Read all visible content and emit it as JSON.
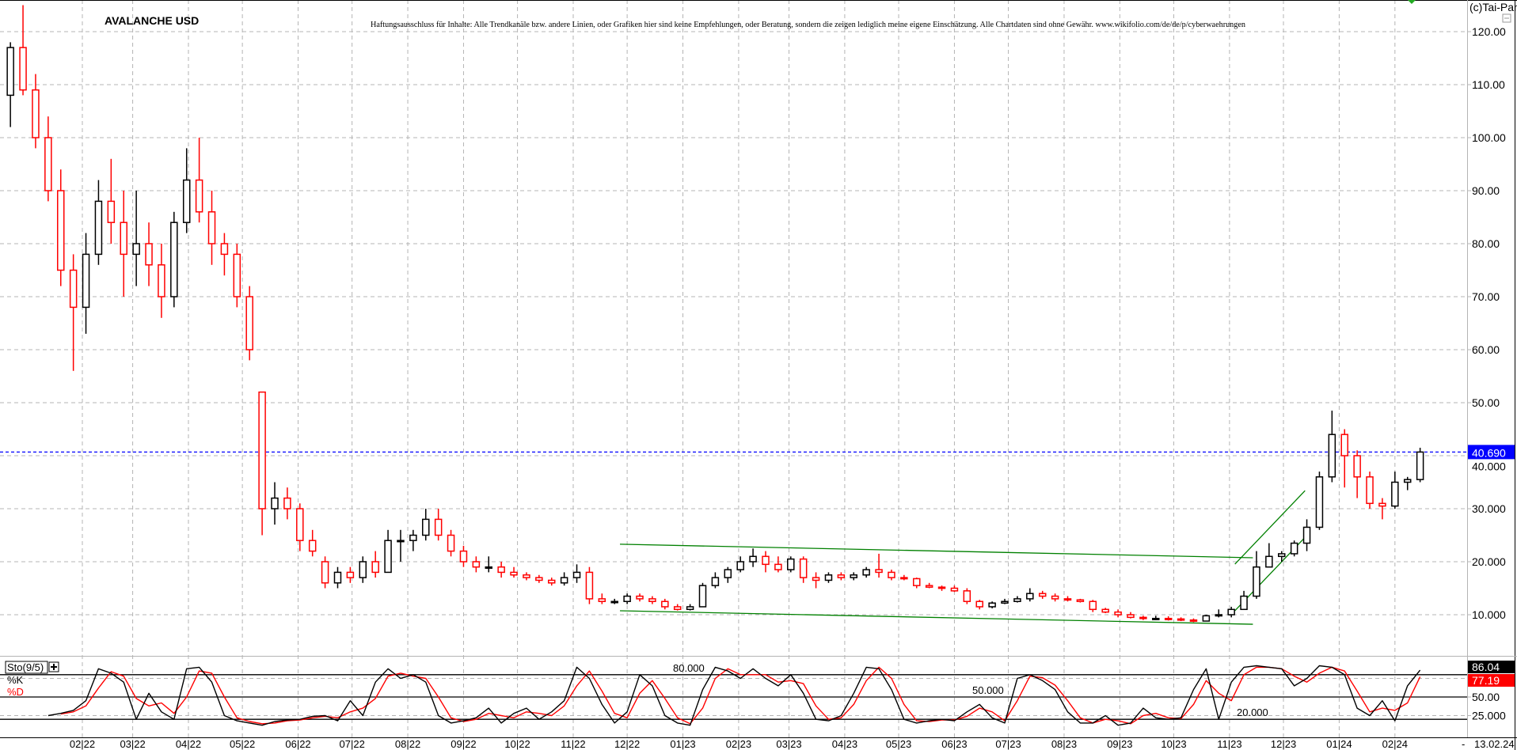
{
  "chart_data": {
    "type": "candlestick",
    "title": "AVALANCHE USD",
    "disclaimer": "Haftungsausschluss für Inhalte: Alle Trendkanäle bzw. andere Linien, oder Grafiken hier sind keine Empfehlungen, oder Beratung, sondern die zeigen lediglich meine eigene Einschätzung. Alle Chartdaten sind ohne Gewähr.  www.wikifolio.com/de/de/p/cyberwaehrungen",
    "copyright": "(c)Tai-Pan",
    "ylim": [
      5,
      125
    ],
    "grid": true,
    "colors": {
      "up": "#000000",
      "down": "#ff0000",
      "trendline": "#008000",
      "last_price": "#0000ff",
      "grid": "#b4b4b4"
    },
    "y_tick_labels": [
      {
        "value": 120,
        "label": "120.00"
      },
      {
        "value": 110,
        "label": "110.00"
      },
      {
        "value": 100,
        "label": "100.00"
      },
      {
        "value": 90,
        "label": "90.00"
      },
      {
        "value": 80,
        "label": "80.00"
      },
      {
        "value": 70,
        "label": "70.00"
      },
      {
        "value": 60,
        "label": "60.00"
      },
      {
        "value": 50,
        "label": "50.00"
      },
      {
        "value": 40,
        "label": "40.000"
      },
      {
        "value": 30,
        "label": "30.000"
      },
      {
        "value": 20,
        "label": "20.000"
      },
      {
        "value": 10,
        "label": "10.000"
      }
    ],
    "last_price": {
      "value": 40.69,
      "label": "40.690"
    },
    "x_tick_labels": [
      {
        "date": "2022-02-01",
        "label": "02|22"
      },
      {
        "date": "2022-03-01",
        "label": "03|22"
      },
      {
        "date": "2022-04-01",
        "label": "04|22"
      },
      {
        "date": "2022-05-01",
        "label": "05|22"
      },
      {
        "date": "2022-06-01",
        "label": "06|22"
      },
      {
        "date": "2022-07-01",
        "label": "07|22"
      },
      {
        "date": "2022-08-01",
        "label": "08|22"
      },
      {
        "date": "2022-09-01",
        "label": "09|22"
      },
      {
        "date": "2022-10-01",
        "label": "10|22"
      },
      {
        "date": "2022-11-01",
        "label": "11|22"
      },
      {
        "date": "2022-12-01",
        "label": "12|22"
      },
      {
        "date": "2023-01-01",
        "label": "01|23"
      },
      {
        "date": "2023-02-01",
        "label": "02|23"
      },
      {
        "date": "2023-03-01",
        "label": "03|23"
      },
      {
        "date": "2023-04-01",
        "label": "04|23"
      },
      {
        "date": "2023-05-01",
        "label": "05|23"
      },
      {
        "date": "2023-06-01",
        "label": "06|23"
      },
      {
        "date": "2023-07-01",
        "label": "07|23"
      },
      {
        "date": "2023-08-01",
        "label": "08|23"
      },
      {
        "date": "2023-09-01",
        "label": "09|23"
      },
      {
        "date": "2023-10-01",
        "label": "10|23"
      },
      {
        "date": "2023-11-01",
        "label": "11|23"
      },
      {
        "date": "2023-12-01",
        "label": "12|23"
      },
      {
        "date": "2024-01-01",
        "label": "01|24"
      },
      {
        "date": "2024-02-01",
        "label": "02|24"
      }
    ],
    "current_date_label": "13.02.24",
    "current_date_prefix": "-",
    "candles_columns": [
      "date",
      "open",
      "high",
      "low",
      "close"
    ],
    "candles": [
      [
        "2021-12-20",
        108,
        118,
        102,
        117
      ],
      [
        "2021-12-27",
        117,
        125,
        108,
        109
      ],
      [
        "2022-01-03",
        109,
        112,
        98,
        100
      ],
      [
        "2022-01-10",
        100,
        104,
        88,
        90
      ],
      [
        "2022-01-17",
        90,
        94,
        72,
        75
      ],
      [
        "2022-01-24",
        75,
        78,
        56,
        68
      ],
      [
        "2022-01-31",
        68,
        82,
        63,
        78
      ],
      [
        "2022-02-07",
        78,
        92,
        76,
        88
      ],
      [
        "2022-02-14",
        88,
        96,
        80,
        84
      ],
      [
        "2022-02-21",
        84,
        90,
        70,
        78
      ],
      [
        "2022-02-28",
        78,
        90,
        72,
        80
      ],
      [
        "2022-03-07",
        80,
        84,
        72,
        76
      ],
      [
        "2022-03-14",
        76,
        80,
        66,
        70
      ],
      [
        "2022-03-21",
        70,
        86,
        68,
        84
      ],
      [
        "2022-03-28",
        84,
        98,
        82,
        92
      ],
      [
        "2022-04-04",
        92,
        100,
        84,
        86
      ],
      [
        "2022-04-11",
        86,
        90,
        76,
        80
      ],
      [
        "2022-04-18",
        80,
        82,
        74,
        78
      ],
      [
        "2022-04-25",
        78,
        80,
        68,
        70
      ],
      [
        "2022-05-02",
        70,
        72,
        58,
        60
      ],
      [
        "2022-05-09",
        52,
        52,
        25,
        30
      ],
      [
        "2022-05-16",
        30,
        35,
        27,
        32
      ],
      [
        "2022-05-23",
        32,
        34,
        28,
        30
      ],
      [
        "2022-05-30",
        30,
        31,
        22,
        24
      ],
      [
        "2022-06-06",
        24,
        26,
        21,
        22
      ],
      [
        "2022-06-13",
        20,
        21,
        15,
        16
      ],
      [
        "2022-06-20",
        16,
        19,
        15,
        18
      ],
      [
        "2022-06-27",
        18,
        19,
        16,
        17
      ],
      [
        "2022-07-04",
        17,
        21,
        16,
        20
      ],
      [
        "2022-07-11",
        20,
        22,
        17,
        18
      ],
      [
        "2022-07-18",
        18,
        26,
        18,
        24
      ],
      [
        "2022-07-25",
        24,
        26,
        20,
        24
      ],
      [
        "2022-08-01",
        24,
        26,
        22,
        25
      ],
      [
        "2022-08-08",
        25,
        30,
        24,
        28
      ],
      [
        "2022-08-15",
        28,
        30,
        24,
        25
      ],
      [
        "2022-08-22",
        25,
        26,
        21,
        22
      ],
      [
        "2022-08-29",
        22,
        23,
        19,
        20
      ],
      [
        "2022-09-05",
        20,
        21,
        18,
        19
      ],
      [
        "2022-09-12",
        19,
        21,
        18,
        19
      ],
      [
        "2022-09-19",
        19,
        20,
        17,
        18
      ],
      [
        "2022-09-26",
        18,
        19,
        17,
        17.5
      ],
      [
        "2022-10-03",
        17.5,
        18,
        16.5,
        17
      ],
      [
        "2022-10-10",
        17,
        17.5,
        16,
        16.5
      ],
      [
        "2022-10-17",
        16.5,
        17,
        15.5,
        16
      ],
      [
        "2022-10-24",
        16,
        18,
        15.5,
        17
      ],
      [
        "2022-10-31",
        17,
        19.5,
        16,
        18
      ],
      [
        "2022-11-07",
        18,
        19,
        12,
        13
      ],
      [
        "2022-11-14",
        13,
        14,
        12,
        12.5
      ],
      [
        "2022-11-21",
        12.5,
        13,
        12,
        12.5
      ],
      [
        "2022-11-28",
        12.5,
        14,
        12,
        13.5
      ],
      [
        "2022-12-05",
        13.5,
        14,
        12.5,
        13
      ],
      [
        "2022-12-12",
        13,
        13.5,
        12,
        12.5
      ],
      [
        "2022-12-19",
        12.5,
        13,
        11,
        11.5
      ],
      [
        "2022-12-26",
        11.5,
        12,
        10.8,
        11
      ],
      [
        "2023-01-02",
        11,
        12,
        10.8,
        11.5
      ],
      [
        "2023-01-09",
        11.5,
        16,
        11.5,
        15.5
      ],
      [
        "2023-01-16",
        15.5,
        18,
        15,
        17
      ],
      [
        "2023-01-23",
        17,
        19,
        16,
        18.5
      ],
      [
        "2023-01-30",
        18.5,
        21,
        18,
        20
      ],
      [
        "2023-02-06",
        20,
        22.5,
        19,
        21
      ],
      [
        "2023-02-13",
        21,
        22,
        18,
        19.5
      ],
      [
        "2023-02-20",
        19.5,
        21,
        18,
        18.5
      ],
      [
        "2023-02-27",
        18.5,
        21,
        18,
        20.5
      ],
      [
        "2023-03-06",
        20.5,
        21,
        16,
        17
      ],
      [
        "2023-03-13",
        17,
        18,
        15,
        16.5
      ],
      [
        "2023-03-20",
        16.5,
        18,
        16,
        17.5
      ],
      [
        "2023-03-27",
        17.5,
        18,
        16.5,
        17
      ],
      [
        "2023-04-03",
        17,
        18,
        16.5,
        17.5
      ],
      [
        "2023-04-10",
        17.5,
        19,
        17,
        18.5
      ],
      [
        "2023-04-17",
        18.5,
        21.5,
        17,
        18
      ],
      [
        "2023-04-24",
        18,
        18.5,
        16.5,
        17
      ],
      [
        "2023-05-01",
        17,
        17.5,
        16.5,
        16.8
      ],
      [
        "2023-05-08",
        16.8,
        17,
        15,
        15.5
      ],
      [
        "2023-05-15",
        15.5,
        16,
        15,
        15.2
      ],
      [
        "2023-05-22",
        15.2,
        15.5,
        14.5,
        15
      ],
      [
        "2023-05-29",
        15,
        15.5,
        14.3,
        14.5
      ],
      [
        "2023-06-05",
        14.5,
        15,
        12,
        12.5
      ],
      [
        "2023-06-12",
        12.5,
        12.8,
        11,
        11.5
      ],
      [
        "2023-06-19",
        11.5,
        12.5,
        11.2,
        12.2
      ],
      [
        "2023-06-26",
        12.2,
        13,
        12,
        12.5
      ],
      [
        "2023-07-03",
        12.5,
        13.5,
        12.3,
        13
      ],
      [
        "2023-07-10",
        13,
        15,
        12.5,
        14
      ],
      [
        "2023-07-17",
        14,
        14.5,
        13,
        13.5
      ],
      [
        "2023-07-24",
        13.5,
        14,
        12.5,
        13
      ],
      [
        "2023-07-31",
        13,
        13.5,
        12.5,
        12.8
      ],
      [
        "2023-08-07",
        12.8,
        13,
        12.3,
        12.5
      ],
      [
        "2023-08-14",
        12.5,
        12.8,
        10.5,
        11
      ],
      [
        "2023-08-21",
        11,
        11.3,
        10.3,
        10.5
      ],
      [
        "2023-08-28",
        10.5,
        11,
        9.5,
        10
      ],
      [
        "2023-09-04",
        10,
        10.5,
        9.3,
        9.5
      ],
      [
        "2023-09-11",
        9.5,
        9.8,
        9,
        9.3
      ],
      [
        "2023-09-18",
        9.3,
        9.8,
        9,
        9.3
      ],
      [
        "2023-09-25",
        9.3,
        9.7,
        8.9,
        9.2
      ],
      [
        "2023-10-02",
        9.2,
        9.5,
        8.8,
        9
      ],
      [
        "2023-10-09",
        9,
        9.3,
        8.6,
        8.8
      ],
      [
        "2023-10-16",
        8.8,
        10,
        8.8,
        9.8
      ],
      [
        "2023-10-23",
        9.8,
        11,
        9.5,
        10
      ],
      [
        "2023-10-30",
        10,
        11.5,
        9.5,
        11
      ],
      [
        "2023-11-06",
        11,
        14.5,
        11,
        13.5
      ],
      [
        "2023-11-13",
        13.5,
        22,
        13,
        19
      ],
      [
        "2023-11-20",
        19,
        23.5,
        19,
        21
      ],
      [
        "2023-11-27",
        21,
        22,
        20,
        21.5
      ],
      [
        "2023-12-04",
        21.5,
        24,
        21,
        23.5
      ],
      [
        "2023-12-11",
        23.5,
        28,
        22,
        26.5
      ],
      [
        "2023-12-18",
        26.5,
        37,
        26,
        36
      ],
      [
        "2023-12-25",
        36,
        48.5,
        35,
        44
      ],
      [
        "2024-01-01",
        44,
        45,
        34,
        40
      ],
      [
        "2024-01-08",
        40,
        41,
        32,
        36
      ],
      [
        "2024-01-15",
        36,
        37,
        30,
        31
      ],
      [
        "2024-01-22",
        31,
        32,
        28,
        30.5
      ],
      [
        "2024-01-29",
        30.5,
        37,
        30,
        35
      ],
      [
        "2024-02-05",
        35,
        36,
        33.5,
        35.5
      ],
      [
        "2024-02-12",
        35.5,
        41.5,
        35,
        40.69
      ]
    ],
    "trendlines": [
      {
        "from": [
          "2022-11-27",
          23.3
        ],
        "to": [
          "2023-11-14",
          20.75
        ]
      },
      {
        "from": [
          "2022-11-27",
          10.75
        ],
        "to": [
          "2023-11-14",
          8.2
        ]
      },
      {
        "from": [
          "2023-11-04",
          19.55
        ],
        "to": [
          "2023-12-13",
          33.4
        ]
      },
      {
        "from": [
          "2023-11-04",
          10.75
        ],
        "to": [
          "2023-12-13",
          24.6
        ]
      }
    ],
    "stochastic": {
      "label": "Sto(9/5)",
      "k_label": "%K",
      "d_label": "%D",
      "ylim": [
        0,
        100
      ],
      "levels": [
        {
          "value": 80,
          "label": "80.000"
        },
        {
          "value": 50,
          "label": "50.000"
        },
        {
          "value": 20,
          "label": "20.000"
        }
      ],
      "y_tick_labels": [
        {
          "value": 50,
          "label": "50.00"
        },
        {
          "value": 25,
          "label": "25.000"
        }
      ],
      "last_k": {
        "value": 86.04,
        "label": "86.04"
      },
      "last_d": {
        "value": 77.19,
        "label": "77.19"
      },
      "k": [
        null,
        null,
        null,
        25,
        28,
        32,
        45,
        88,
        82,
        70,
        20,
        55,
        30,
        20,
        88,
        90,
        70,
        25,
        18,
        15,
        12,
        17,
        19,
        20,
        24,
        25,
        18,
        45,
        25,
        70,
        88,
        75,
        80,
        70,
        25,
        15,
        18,
        22,
        35,
        15,
        28,
        35,
        20,
        30,
        45,
        90,
        75,
        40,
        15,
        30,
        80,
        65,
        25,
        15,
        12,
        60,
        90,
        85,
        75,
        88,
        75,
        65,
        80,
        55,
        20,
        18,
        25,
        55,
        90,
        88,
        60,
        20,
        15,
        18,
        20,
        18,
        30,
        40,
        22,
        15,
        75,
        80,
        72,
        60,
        30,
        15,
        15,
        25,
        12,
        15,
        35,
        22,
        20,
        22,
        60,
        88,
        20,
        70,
        90,
        92,
        90,
        88,
        65,
        75,
        92,
        90,
        80,
        35,
        25,
        45,
        18,
        65,
        86.04
      ],
      "d": [
        null,
        null,
        null,
        null,
        27,
        30,
        38,
        62,
        84,
        78,
        48,
        38,
        42,
        28,
        50,
        85,
        82,
        50,
        22,
        17,
        14,
        15,
        18,
        19,
        22,
        24,
        22,
        30,
        35,
        48,
        78,
        82,
        78,
        75,
        50,
        22,
        17,
        20,
        28,
        25,
        22,
        30,
        28,
        25,
        38,
        65,
        85,
        58,
        28,
        22,
        55,
        72,
        48,
        22,
        14,
        35,
        75,
        88,
        80,
        80,
        80,
        70,
        72,
        68,
        38,
        20,
        22,
        40,
        72,
        90,
        75,
        40,
        18,
        17,
        19,
        19,
        24,
        35,
        30,
        18,
        45,
        78,
        76,
        66,
        45,
        22,
        15,
        20,
        18,
        14,
        25,
        28,
        22,
        21,
        40,
        72,
        55,
        45,
        80,
        90,
        90,
        88,
        78,
        70,
        82,
        90,
        85,
        58,
        30,
        35,
        32,
        42,
        77.19
      ]
    }
  }
}
